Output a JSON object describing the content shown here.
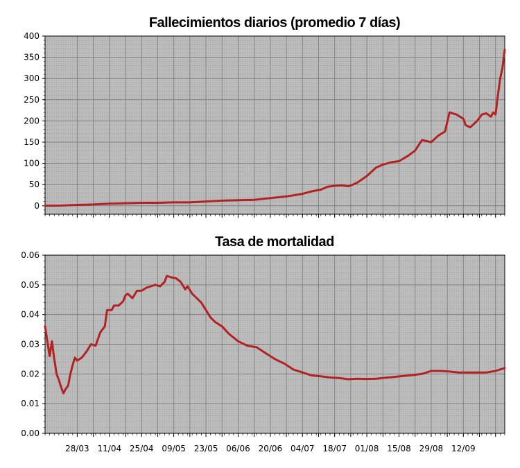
{
  "chart_data": [
    {
      "type": "line",
      "title": "Fallecimientos diarios (promedio 7 días)",
      "xlabel": "",
      "ylabel": "",
      "ylim": [
        -20,
        400
      ],
      "yticks": [
        0,
        50,
        100,
        150,
        200,
        250,
        300,
        350,
        400
      ],
      "grid": true,
      "color": "#b22222",
      "x_start": "2020-03-14",
      "x_end": "2020-09-30",
      "series": [
        {
          "name": "",
          "points": [
            [
              "2020-03-14",
              0
            ],
            [
              "2020-03-21",
              0.5
            ],
            [
              "2020-03-28",
              2
            ],
            [
              "2020-04-04",
              3
            ],
            [
              "2020-04-11",
              5
            ],
            [
              "2020-04-18",
              6
            ],
            [
              "2020-04-25",
              7
            ],
            [
              "2020-05-02",
              7
            ],
            [
              "2020-05-09",
              8
            ],
            [
              "2020-05-16",
              8
            ],
            [
              "2020-05-23",
              10
            ],
            [
              "2020-05-30",
              12
            ],
            [
              "2020-06-06",
              13
            ],
            [
              "2020-06-13",
              14
            ],
            [
              "2020-06-20",
              18
            ],
            [
              "2020-06-27",
              22
            ],
            [
              "2020-07-04",
              28
            ],
            [
              "2020-07-08",
              34
            ],
            [
              "2020-07-12",
              38
            ],
            [
              "2020-07-15",
              45
            ],
            [
              "2020-07-18",
              47
            ],
            [
              "2020-07-21",
              48
            ],
            [
              "2020-07-24",
              46
            ],
            [
              "2020-07-26",
              50
            ],
            [
              "2020-07-28",
              55
            ],
            [
              "2020-08-01",
              70
            ],
            [
              "2020-08-05",
              90
            ],
            [
              "2020-08-08",
              97
            ],
            [
              "2020-08-12",
              103
            ],
            [
              "2020-08-15",
              105
            ],
            [
              "2020-08-19",
              118
            ],
            [
              "2020-08-22",
              130
            ],
            [
              "2020-08-25",
              155
            ],
            [
              "2020-08-29",
              150
            ],
            [
              "2020-09-01",
              165
            ],
            [
              "2020-09-04",
              175
            ],
            [
              "2020-09-06",
              220
            ],
            [
              "2020-09-09",
              215
            ],
            [
              "2020-09-12",
              205
            ],
            [
              "2020-09-13",
              190
            ],
            [
              "2020-09-15",
              185
            ],
            [
              "2020-09-18",
              200
            ],
            [
              "2020-09-20",
              215
            ],
            [
              "2020-09-22",
              218
            ],
            [
              "2020-09-24",
              210
            ],
            [
              "2020-09-25",
              220
            ],
            [
              "2020-09-26",
              215
            ],
            [
              "2020-09-27",
              260
            ],
            [
              "2020-09-28",
              300
            ],
            [
              "2020-09-29",
              325
            ],
            [
              "2020-09-30",
              368
            ]
          ]
        }
      ]
    },
    {
      "type": "line",
      "title": "Tasa de mortalidad",
      "xlabel": "",
      "ylabel": "",
      "ylim": [
        0,
        0.06
      ],
      "yticks": [
        "0.00",
        "0.01",
        "0.02",
        "0.03",
        "0.04",
        "0.05",
        "0.06"
      ],
      "grid": true,
      "color": "#b22222",
      "xticks": [
        "28/03",
        "11/04",
        "25/04",
        "09/05",
        "23/05",
        "06/06",
        "20/06",
        "04/07",
        "18/07",
        "01/08",
        "15/08",
        "29/08",
        "12/09"
      ],
      "x_start": "2020-03-14",
      "x_end": "2020-09-30",
      "series": [
        {
          "name": "",
          "points": [
            [
              "2020-03-14",
              0.036
            ],
            [
              "2020-03-15",
              0.031
            ],
            [
              "2020-03-16",
              0.026
            ],
            [
              "2020-03-17",
              0.031
            ],
            [
              "2020-03-18",
              0.025
            ],
            [
              "2020-03-19",
              0.02
            ],
            [
              "2020-03-20",
              0.018
            ],
            [
              "2020-03-21",
              0.0155
            ],
            [
              "2020-03-22",
              0.0135
            ],
            [
              "2020-03-23",
              0.015
            ],
            [
              "2020-03-24",
              0.016
            ],
            [
              "2020-03-25",
              0.02
            ],
            [
              "2020-03-26",
              0.023
            ],
            [
              "2020-03-27",
              0.0255
            ],
            [
              "2020-03-28",
              0.0245
            ],
            [
              "2020-03-30",
              0.0255
            ],
            [
              "2020-04-01",
              0.0275
            ],
            [
              "2020-04-03",
              0.03
            ],
            [
              "2020-04-05",
              0.0295
            ],
            [
              "2020-04-07",
              0.034
            ],
            [
              "2020-04-09",
              0.036
            ],
            [
              "2020-04-10",
              0.0415
            ],
            [
              "2020-04-12",
              0.0415
            ],
            [
              "2020-04-13",
              0.043
            ],
            [
              "2020-04-15",
              0.043
            ],
            [
              "2020-04-17",
              0.0445
            ],
            [
              "2020-04-18",
              0.0465
            ],
            [
              "2020-04-19",
              0.047
            ],
            [
              "2020-04-21",
              0.0455
            ],
            [
              "2020-04-23",
              0.048
            ],
            [
              "2020-04-25",
              0.048
            ],
            [
              "2020-04-27",
              0.049
            ],
            [
              "2020-04-29",
              0.0495
            ],
            [
              "2020-05-01",
              0.05
            ],
            [
              "2020-05-03",
              0.0495
            ],
            [
              "2020-05-05",
              0.051
            ],
            [
              "2020-05-06",
              0.053
            ],
            [
              "2020-05-08",
              0.0525
            ],
            [
              "2020-05-10",
              0.0522
            ],
            [
              "2020-05-12",
              0.051
            ],
            [
              "2020-05-14",
              0.0485
            ],
            [
              "2020-05-15",
              0.0495
            ],
            [
              "2020-05-17",
              0.047
            ],
            [
              "2020-05-19",
              0.0455
            ],
            [
              "2020-05-21",
              0.044
            ],
            [
              "2020-05-23",
              0.0415
            ],
            [
              "2020-05-25",
              0.039
            ],
            [
              "2020-05-27",
              0.0375
            ],
            [
              "2020-05-30",
              0.036
            ],
            [
              "2020-06-02",
              0.0335
            ],
            [
              "2020-06-06",
              0.031
            ],
            [
              "2020-06-10",
              0.0295
            ],
            [
              "2020-06-14",
              0.029
            ],
            [
              "2020-06-18",
              0.027
            ],
            [
              "2020-06-22",
              0.025
            ],
            [
              "2020-06-26",
              0.0235
            ],
            [
              "2020-06-30",
              0.0215
            ],
            [
              "2020-07-04",
              0.0205
            ],
            [
              "2020-07-08",
              0.0195
            ],
            [
              "2020-07-12",
              0.0192
            ],
            [
              "2020-07-16",
              0.0188
            ],
            [
              "2020-07-20",
              0.0186
            ],
            [
              "2020-07-24",
              0.0182
            ],
            [
              "2020-07-28",
              0.0184
            ],
            [
              "2020-08-01",
              0.0183
            ],
            [
              "2020-08-05",
              0.0184
            ],
            [
              "2020-08-09",
              0.0187
            ],
            [
              "2020-08-13",
              0.019
            ],
            [
              "2020-08-17",
              0.0193
            ],
            [
              "2020-08-21",
              0.0196
            ],
            [
              "2020-08-25",
              0.02
            ],
            [
              "2020-08-29",
              0.021
            ],
            [
              "2020-09-02",
              0.021
            ],
            [
              "2020-09-06",
              0.0208
            ],
            [
              "2020-09-10",
              0.0205
            ],
            [
              "2020-09-14",
              0.0205
            ],
            [
              "2020-09-18",
              0.0205
            ],
            [
              "2020-09-22",
              0.0205
            ],
            [
              "2020-09-26",
              0.021
            ],
            [
              "2020-09-30",
              0.022
            ]
          ]
        }
      ]
    }
  ]
}
